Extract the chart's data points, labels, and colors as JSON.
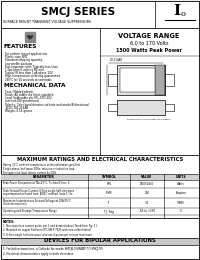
{
  "title": "SMCJ SERIES",
  "subtitle": "SURFACE MOUNT TRANSIENT VOLTAGE SUPPRESSORS",
  "voltage_range_title": "VOLTAGE RANGE",
  "voltage_range": "6.0 to 170 Volts",
  "power": "1500 Watts Peak Power",
  "features_title": "FEATURES",
  "features": [
    "For surface mount applications",
    "Plastic case SMC",
    "Standard shipping quantity",
    "Low profile package",
    "Fast response time: Typically less than",
    "1.0ps from 0 volts to BV min",
    "Typical IR less than 1uA above 10V",
    "High temperature soldering guaranteed",
    "250°C for 10 seconds at terminals"
  ],
  "mech_title": "MECHANICAL DATA",
  "mech": [
    "Case: Molded plastic",
    "Finish: All solder dip finish standard",
    "Lead: Solderable per MIL-STD-202,",
    "method 208 guaranteed",
    "Polarity: Color band denotes cathode and anode/Bidirectional",
    "JEDEC DO-214AB",
    "Weight: 0.14 grams"
  ],
  "table_title": "MAXIMUM RATINGS AND ELECTRICAL CHARACTERISTICS",
  "table_note1": "Rating 25°C ambient temperature unless otherwise specified",
  "table_note2": "Single phase, half wave, 60Hz, resistive or inductive load",
  "table_note3": "For capacitive load, derate current by 20%",
  "table_headers": [
    "PARAMETER",
    "SYMBOL",
    "VALUE",
    "UNITS"
  ],
  "notes_title": "NOTES:",
  "notes": [
    "1. Non-repetitive current pulse, per 1 and derated above Tamb from Fig. 11",
    "2. Mounted on copper Pad(min)/IPC-SM-P 7525 with min solder fileted",
    "3. 8.3ms single half-sine-wave, also use 4 pulses per minute maximum"
  ],
  "bipolar_title": "DEVICES FOR BIPOLAR APPLICATIONS",
  "bipolar": [
    "1. For bidirectional use, a Cathode for anode SMCJ6.0(UNIBIP TO SMCJ70)",
    "2. Electrical characteristics apply in both directions"
  ],
  "dim_note": "Dimensions in millimeters (millimeters)"
}
